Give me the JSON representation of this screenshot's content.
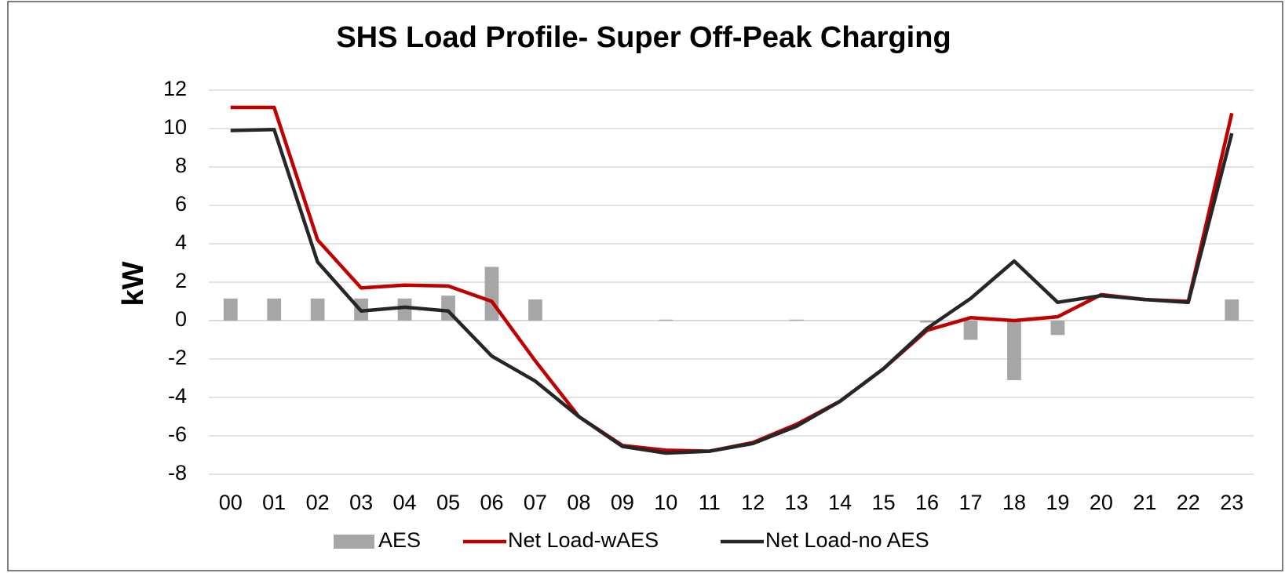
{
  "chart_data": {
    "type": "bar_line",
    "title": "SHS Load Profile- Super Off-Peak Charging",
    "y_label": "kW",
    "categories": [
      "00",
      "01",
      "02",
      "03",
      "04",
      "05",
      "06",
      "07",
      "08",
      "09",
      "10",
      "11",
      "12",
      "13",
      "14",
      "15",
      "16",
      "17",
      "18",
      "19",
      "20",
      "21",
      "22",
      "23"
    ],
    "series": [
      {
        "name": "AES",
        "type": "bar",
        "color": "#a6a6a6",
        "values": [
          1.15,
          1.15,
          1.15,
          1.15,
          1.15,
          1.3,
          2.8,
          1.1,
          0,
          0,
          0.05,
          0,
          0,
          0.05,
          0,
          0,
          -0.1,
          -1.0,
          -3.1,
          -0.75,
          0,
          0,
          0,
          1.1
        ]
      },
      {
        "name": "Net Load-wAES",
        "type": "line",
        "color": "#c00000",
        "values": [
          11.1,
          11.1,
          4.2,
          1.7,
          1.85,
          1.8,
          1.0,
          -2.1,
          -5.0,
          -6.5,
          -6.75,
          -6.8,
          -6.35,
          -5.4,
          -4.2,
          -2.5,
          -0.5,
          0.15,
          0.0,
          0.2,
          1.35,
          1.1,
          1.0,
          10.8
        ]
      },
      {
        "name": "Net Load-no AES",
        "type": "line",
        "color": "#262626",
        "values": [
          9.9,
          9.95,
          3.05,
          0.5,
          0.7,
          0.5,
          -1.85,
          -3.15,
          -5.0,
          -6.55,
          -6.9,
          -6.8,
          -6.4,
          -5.5,
          -4.2,
          -2.5,
          -0.4,
          1.15,
          3.1,
          0.95,
          1.3,
          1.1,
          0.95,
          9.75
        ]
      }
    ],
    "ylim": [
      -8,
      12
    ],
    "yticks": [
      -8,
      -6,
      -4,
      -2,
      0,
      2,
      4,
      6,
      8,
      10,
      12
    ],
    "grid": true,
    "legend": "bottom"
  }
}
